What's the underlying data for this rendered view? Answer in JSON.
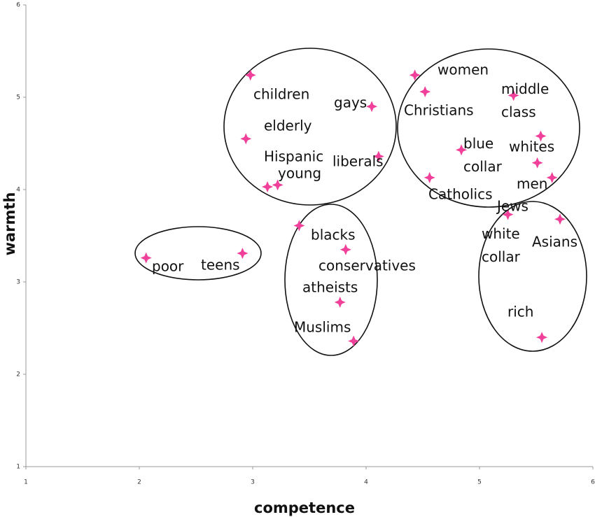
{
  "chart_data": {
    "type": "scatter",
    "xlabel": "competence",
    "ylabel": "warmth",
    "xlim": [
      1,
      6
    ],
    "ylim": [
      1,
      6
    ],
    "xticks": [
      1,
      2,
      3,
      4,
      5,
      6
    ],
    "yticks": [
      1,
      2,
      3,
      4,
      5,
      6
    ],
    "grid": false,
    "color": "#f0409a",
    "labels": [
      "children",
      "elderly",
      "Hispanic",
      "young",
      "gays",
      "liberals",
      "women",
      "Christians",
      "middle class",
      "whites",
      "blue collar",
      "white collar",
      "men",
      "Catholics",
      "Jews",
      "Asians",
      "blacks",
      "conservatives",
      "atheists",
      "Muslims",
      "poor",
      "teens",
      "rich"
    ],
    "x": [
      2.98,
      2.94,
      3.13,
      3.22,
      4.05,
      4.11,
      4.43,
      4.52,
      5.3,
      5.54,
      4.84,
      5.51,
      5.64,
      4.56,
      5.25,
      5.71,
      3.41,
      3.82,
      3.77,
      3.89,
      2.06,
      2.91,
      5.55
    ],
    "values": [
      5.24,
      4.55,
      4.03,
      4.05,
      4.9,
      4.36,
      5.24,
      5.06,
      5.02,
      4.58,
      4.43,
      4.29,
      4.13,
      4.13,
      3.73,
      3.68,
      3.61,
      3.35,
      2.78,
      2.36,
      3.26,
      3.31,
      2.4
    ]
  }
}
